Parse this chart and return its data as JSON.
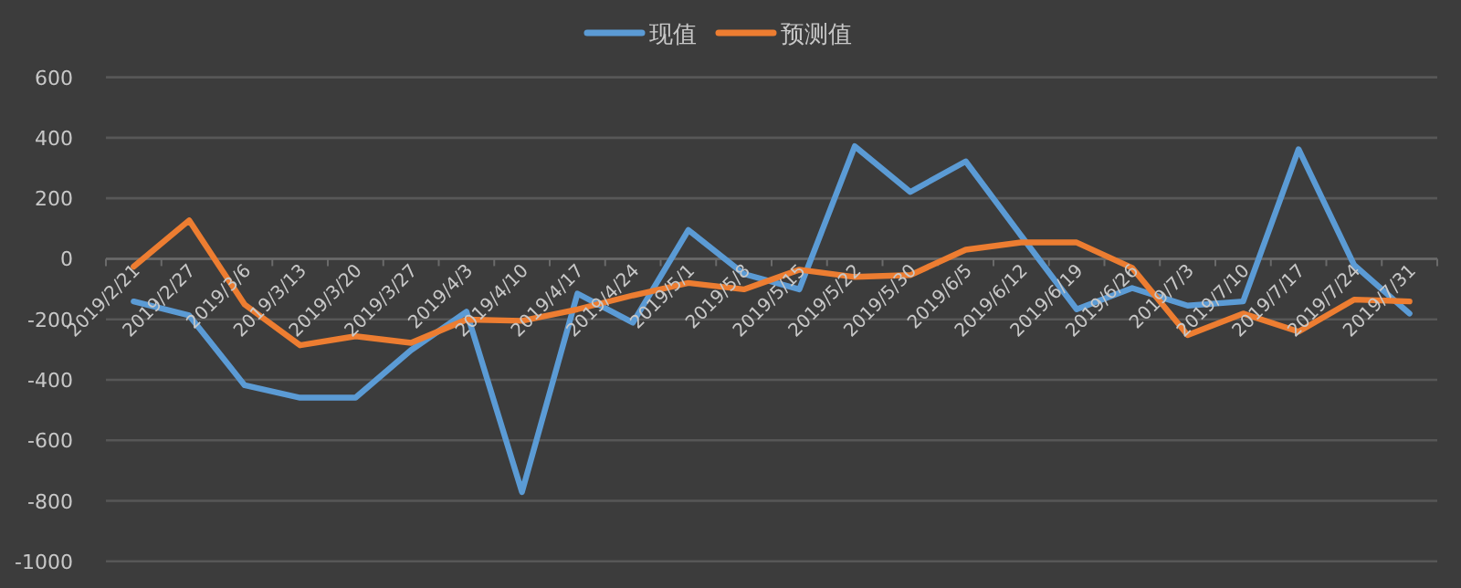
{
  "chart_data": {
    "type": "line",
    "categories": [
      "2019/2/21",
      "2019/2/27",
      "2019/3/6",
      "2019/3/13",
      "2019/3/20",
      "2019/3/27",
      "2019/4/3",
      "2019/4/10",
      "2019/4/17",
      "2019/4/24",
      "2019/5/1",
      "2019/5/8",
      "2019/5/15",
      "2019/5/22",
      "2019/5/30",
      "2019/6/5",
      "2019/6/12",
      "2019/6/19",
      "2019/6/26",
      "2019/7/3",
      "2019/7/10",
      "2019/7/17",
      "2019/7/24",
      "2019/7/31"
    ],
    "series": [
      {
        "name": "现值",
        "color": "#5b9bd5",
        "values": [
          -141,
          -187,
          -418,
          -459,
          -459,
          -302,
          -175,
          -771,
          -115,
          -211,
          95,
          -50,
          -101,
          372,
          221,
          322,
          76,
          -167,
          -97,
          -155,
          -141,
          362,
          -20,
          -181
        ]
      },
      {
        "name": "预测值",
        "color": "#ed7d31",
        "values": [
          -26,
          127,
          -151,
          -286,
          -256,
          -278,
          -201,
          -205,
          -167,
          -121,
          -80,
          -101,
          -36,
          -60,
          -54,
          30,
          54,
          54,
          -30,
          -252,
          -181,
          -241,
          -135,
          -141
        ]
      }
    ],
    "ylim": [
      -1000,
      600
    ],
    "yticks": [
      -1000,
      -800,
      -600,
      -400,
      -200,
      0,
      200,
      400,
      600
    ],
    "grid": "y",
    "legend": "top"
  }
}
